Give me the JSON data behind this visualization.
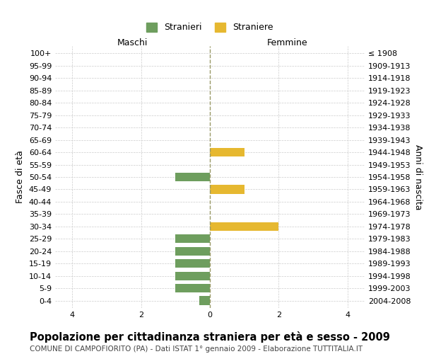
{
  "age_groups": [
    "100+",
    "95-99",
    "90-94",
    "85-89",
    "80-84",
    "75-79",
    "70-74",
    "65-69",
    "60-64",
    "55-59",
    "50-54",
    "45-49",
    "40-44",
    "35-39",
    "30-34",
    "25-29",
    "20-24",
    "15-19",
    "10-14",
    "5-9",
    "0-4"
  ],
  "birth_years": [
    "≤ 1908",
    "1909-1913",
    "1914-1918",
    "1919-1923",
    "1924-1928",
    "1929-1933",
    "1934-1938",
    "1939-1943",
    "1944-1948",
    "1949-1953",
    "1954-1958",
    "1959-1963",
    "1964-1968",
    "1969-1973",
    "1974-1978",
    "1979-1983",
    "1984-1988",
    "1989-1993",
    "1994-1998",
    "1999-2003",
    "2004-2008"
  ],
  "maschi": [
    0,
    0,
    0,
    0,
    0,
    0,
    0,
    0,
    0,
    0,
    -1,
    0,
    0,
    0,
    0,
    -1,
    -1,
    -1,
    -1,
    -1,
    -0.3
  ],
  "femmine": [
    0,
    0,
    0,
    0,
    0,
    0,
    0,
    0,
    1,
    0,
    0,
    1,
    0,
    0,
    2,
    0,
    0,
    0,
    0,
    0,
    0
  ],
  "maschi_color": "#6e9e5e",
  "femmine_color": "#e6b830",
  "bar_height": 0.7,
  "xlim": [
    -4.5,
    4.5
  ],
  "xticks": [
    -4,
    -2,
    0,
    2,
    4
  ],
  "xticklabels": [
    "4",
    "2",
    "0",
    "2",
    "4"
  ],
  "title": "Popolazione per cittadinanza straniera per età e sesso - 2009",
  "subtitle": "COMUNE DI CAMPOFIORITO (PA) - Dati ISTAT 1° gennaio 2009 - Elaborazione TUTTITALIA.IT",
  "ylabel_left": "Fasce di età",
  "ylabel_right": "Anni di nascita",
  "legend_maschi": "Stranieri",
  "legend_femmine": "Straniere",
  "maschi_label": "Maschi",
  "femmine_label": "Femmine",
  "grid_color": "#cccccc",
  "background_color": "#ffffff",
  "dashed_line_color": "#999966",
  "title_fontsize": 10.5,
  "subtitle_fontsize": 7.5,
  "tick_fontsize": 8,
  "label_fontsize": 9,
  "legend_fontsize": 9
}
